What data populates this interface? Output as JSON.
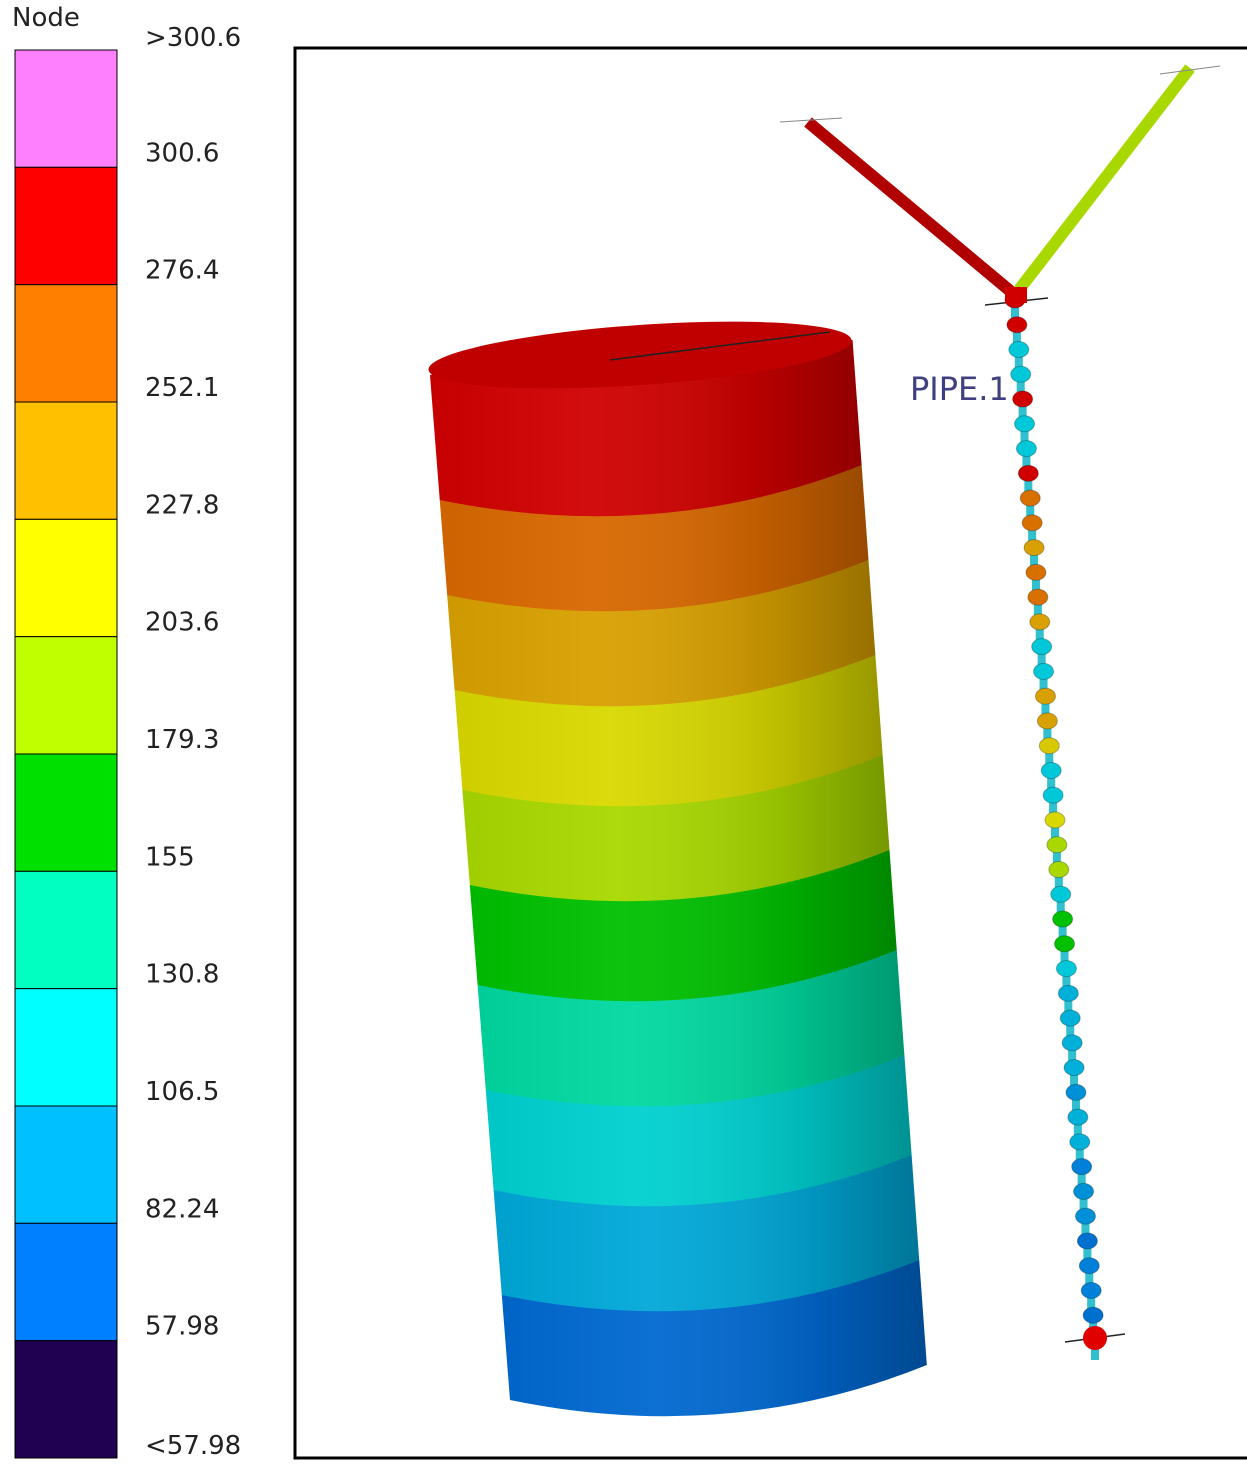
{
  "legend": {
    "title": "Node",
    "labels": [
      ">300.6",
      "300.6",
      "276.4",
      "252.1",
      "227.8",
      "203.6",
      "179.3",
      "155",
      "130.8",
      "106.5",
      "82.24",
      "57.98",
      "<57.98"
    ],
    "colors": [
      "#ff80ff",
      "#ff0000",
      "#ff8000",
      "#ffc000",
      "#ffff00",
      "#c0ff00",
      "#00e000",
      "#00ffc0",
      "#00ffff",
      "#00c0ff",
      "#0080ff",
      "#200050"
    ]
  },
  "viewport": {
    "label": "PIPE.1"
  }
}
